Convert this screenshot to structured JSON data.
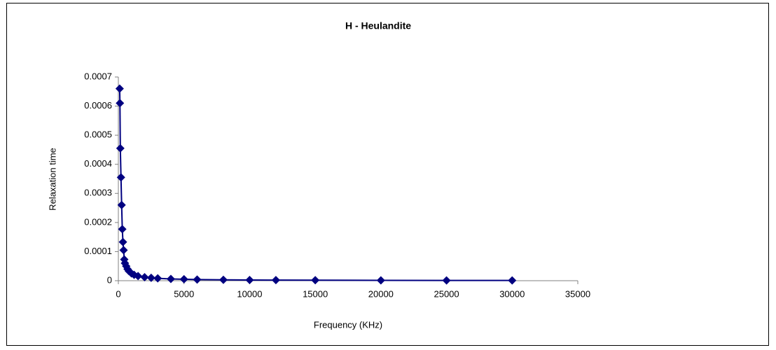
{
  "chart_data": {
    "type": "line",
    "title": "H - Heulandite",
    "x_label": "Frequency (KHz)",
    "y_label": "Relaxation time",
    "x": [
      100,
      120,
      150,
      200,
      250,
      300,
      350,
      400,
      450,
      500,
      600,
      700,
      800,
      1000,
      1200,
      1500,
      2000,
      2500,
      3000,
      4000,
      5000,
      6000,
      8000,
      10000,
      12000,
      15000,
      20000,
      25000,
      30000
    ],
    "series": [
      {
        "name": "H - Heulandite",
        "color": "#000080",
        "values": [
          0.00066,
          0.00061,
          0.000455,
          0.000355,
          0.00026,
          0.000177,
          0.000133,
          0.000105,
          7.3e-05,
          6e-05,
          5e-05,
          4e-05,
          3.3e-05,
          2.5e-05,
          2e-05,
          1.6e-05,
          1.2e-05,
          1e-05,
          8e-06,
          6e-06,
          5e-06,
          4e-06,
          3e-06,
          2.5e-06,
          2e-06,
          1.7e-06,
          1.3e-06,
          1e-06,
          8e-07
        ]
      }
    ],
    "xlim": [
      0,
      35000
    ],
    "xticks": [
      0,
      5000,
      10000,
      15000,
      20000,
      25000,
      30000,
      35000
    ],
    "ylim": [
      0,
      0.0007
    ],
    "yticks": [
      0,
      0.0001,
      0.0002,
      0.0003,
      0.0004,
      0.0005,
      0.0006,
      0.0007
    ],
    "grid": false,
    "legend": false
  }
}
